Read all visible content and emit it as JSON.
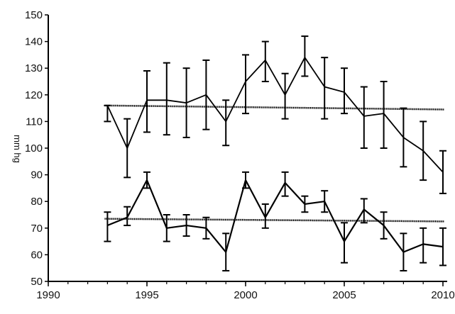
{
  "chart_data": {
    "type": "line",
    "ylabel": "mm hg",
    "xlim": [
      1990,
      2010
    ],
    "ylim": [
      50,
      150
    ],
    "x_ticks": [
      1990,
      1995,
      2000,
      2005,
      2010
    ],
    "y_ticks": [
      50,
      60,
      70,
      80,
      90,
      100,
      110,
      120,
      130,
      140,
      150
    ],
    "grid": false,
    "legend": "none",
    "x": [
      1993,
      1994,
      1995,
      1996,
      1997,
      1998,
      1999,
      2000,
      2001,
      2002,
      2003,
      2004,
      2005,
      2006,
      2007,
      2008,
      2009,
      2010
    ],
    "series": [
      {
        "values": [
          116,
          100,
          118,
          118,
          117,
          120,
          110,
          125,
          133,
          120,
          134,
          123,
          121,
          112,
          113,
          104,
          99,
          91
        ],
        "err_low": [
          110,
          89,
          106,
          105,
          104,
          107,
          101,
          113,
          125,
          111,
          127,
          111,
          113,
          100,
          100,
          93,
          88,
          83
        ],
        "err_high": [
          116,
          111,
          129,
          132,
          130,
          133,
          118,
          135,
          140,
          128,
          142,
          134,
          130,
          123,
          125,
          115,
          110,
          99
        ],
        "trend": [
          116,
          114.5
        ]
      },
      {
        "values": [
          71,
          74,
          88,
          70,
          71,
          70,
          61,
          88,
          74,
          87,
          79,
          80,
          65,
          77,
          71,
          61,
          64,
          63
        ],
        "err_low": [
          65,
          71,
          85,
          65,
          67,
          66,
          54,
          85,
          70,
          82,
          76,
          76,
          57,
          72,
          66,
          54,
          57,
          56
        ],
        "err_high": [
          76,
          78,
          91,
          75,
          75,
          74,
          68,
          91,
          79,
          91,
          82,
          84,
          72,
          81,
          76,
          68,
          70,
          70
        ],
        "trend": [
          73.5,
          72.5
        ]
      }
    ]
  }
}
